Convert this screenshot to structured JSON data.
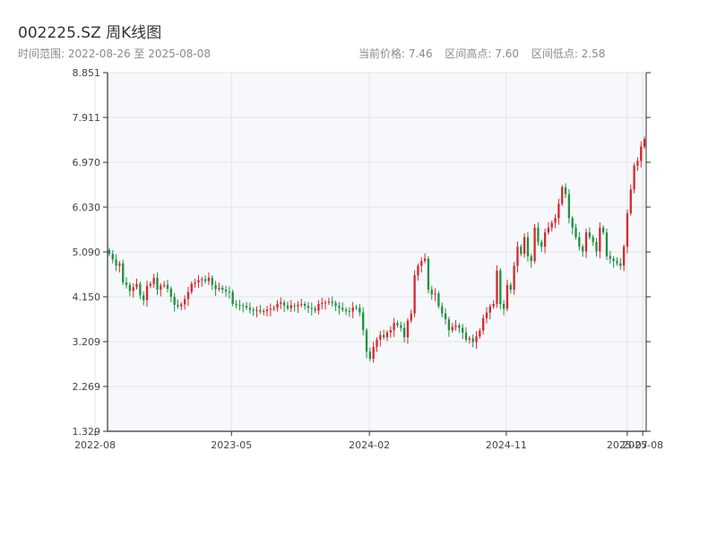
{
  "header": {
    "title": "002225.SZ 周K线图",
    "time_range": "时间范围: 2022-08-26 至 2025-08-08",
    "current_price": "当前价格: 7.46",
    "range_high": "区间高点: 7.60",
    "range_low": "区间低点: 2.58"
  },
  "colors": {
    "up": "#d7282d",
    "down": "#1f9140",
    "plot_bg": "#f6f8fb",
    "grid": "#e3e6ea",
    "axis": "#333333"
  },
  "chart_data": {
    "type": "candlestick",
    "title": "002225.SZ 周K线图",
    "x_range": [
      "2022-08-26",
      "2025-08-08"
    ],
    "ylim": [
      1.329,
      8.851
    ],
    "y_ticks": [
      "1.329",
      "2.269",
      "3.209",
      "4.150",
      "5.090",
      "6.030",
      "6.970",
      "7.911",
      "8.851"
    ],
    "x_ticks": [
      {
        "date": "2022-08-01",
        "label": "2022-08"
      },
      {
        "date": "2023-05-01",
        "label": "2023-05"
      },
      {
        "date": "2024-02-01",
        "label": "2024-02"
      },
      {
        "date": "2024-11-01",
        "label": "2024-11"
      },
      {
        "date": "2025-07-01",
        "label": "2025-07"
      },
      {
        "date": "2025-08-01",
        "label": "2025-08"
      }
    ],
    "grid": true,
    "weekly_close_approx": [
      5.05,
      4.93,
      4.8,
      4.85,
      4.45,
      4.4,
      4.27,
      4.35,
      4.42,
      4.18,
      4.08,
      4.38,
      4.42,
      4.55,
      4.3,
      4.38,
      4.4,
      4.32,
      4.15,
      3.98,
      3.95,
      3.99,
      4.1,
      4.25,
      4.42,
      4.45,
      4.5,
      4.52,
      4.48,
      4.55,
      4.4,
      4.31,
      4.34,
      4.3,
      4.26,
      4.25,
      4.0,
      3.98,
      3.97,
      3.96,
      3.92,
      3.88,
      3.86,
      3.87,
      3.84,
      3.85,
      3.88,
      3.9,
      3.92,
      4.0,
      4.03,
      3.97,
      3.91,
      3.97,
      3.95,
      3.98,
      4.0,
      3.96,
      3.92,
      3.9,
      3.86,
      4.0,
      4.02,
      4.03,
      4.05,
      4.02,
      3.96,
      3.92,
      3.88,
      3.85,
      3.84,
      3.93,
      3.92,
      3.82,
      3.45,
      3.0,
      2.85,
      3.1,
      3.25,
      3.35,
      3.3,
      3.4,
      3.45,
      3.6,
      3.55,
      3.5,
      3.3,
      3.65,
      3.8,
      4.6,
      4.8,
      4.9,
      4.95,
      4.3,
      4.2,
      4.22,
      3.95,
      3.8,
      3.68,
      3.45,
      3.52,
      3.55,
      3.5,
      3.4,
      3.25,
      3.28,
      3.2,
      3.32,
      3.44,
      3.7,
      3.82,
      3.95,
      4.0,
      4.7,
      4.0,
      3.9,
      4.4,
      4.3,
      4.8,
      5.2,
      5.05,
      5.4,
      5.0,
      4.9,
      5.6,
      5.3,
      5.2,
      5.5,
      5.6,
      5.7,
      5.8,
      6.1,
      6.45,
      6.3,
      5.8,
      5.6,
      5.4,
      5.2,
      5.1,
      5.5,
      5.4,
      5.3,
      5.1,
      5.6,
      5.5,
      5.0,
      4.95,
      4.9,
      4.85,
      4.8,
      5.2,
      5.9,
      6.4,
      6.9,
      7.0,
      7.3,
      7.46
    ]
  }
}
